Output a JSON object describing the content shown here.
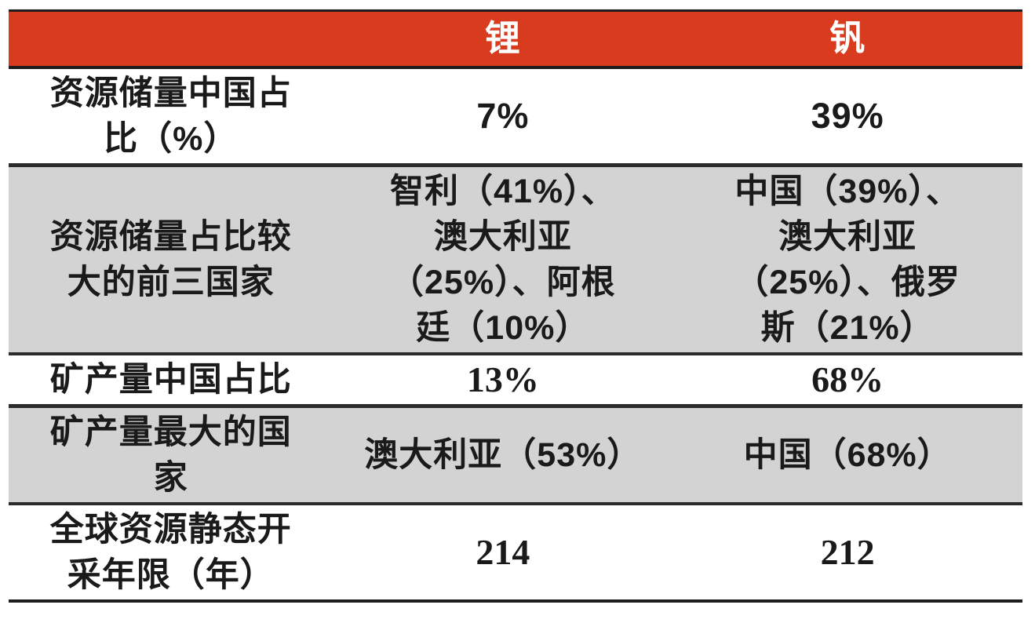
{
  "colors": {
    "header_bg": "#D93B1E",
    "header_text": "#FFFFFF",
    "shaded_row_bg": "#D3D3D3",
    "plain_row_bg": "#FFFFFF",
    "border": "#1D1D1D",
    "text": "#1A1A1A"
  },
  "table": {
    "header": {
      "label": "",
      "lithium": "锂",
      "vanadium": "钒"
    },
    "rows": [
      {
        "label": "资源储量中国占\n比（%）",
        "lithium": "7%",
        "vanadium": "39%"
      },
      {
        "label": "资源储量占比较\n大的前三国家",
        "lithium": "智利（41%）、\n澳大利亚\n（25%）、阿根\n廷（10%）",
        "vanadium": "中国（39%）、\n澳大利亚\n（25%）、俄罗\n斯（21%）"
      },
      {
        "label": "矿产量中国占比",
        "lithium": "13%",
        "vanadium": "68%"
      },
      {
        "label": "矿产量最大的国\n家",
        "lithium": "澳大利亚（53%）",
        "vanadium": "中国（68%）"
      },
      {
        "label": "全球资源静态开\n采年限（年）",
        "lithium": "214",
        "vanadium": "212"
      }
    ]
  }
}
